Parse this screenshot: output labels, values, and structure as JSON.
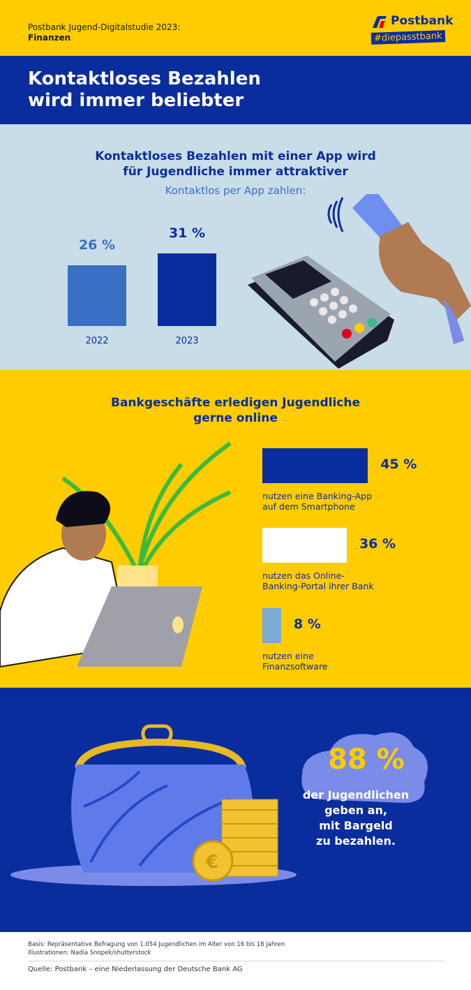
{
  "header": {
    "study_line1": "Postbank Jugend-Digitalstudie 2023:",
    "study_line2": "Finanzen",
    "logo_text": "Postbank",
    "logo_hashtag": "#diepasstbank"
  },
  "title": {
    "line1": "Kontaktloses Bezahlen",
    "line2": "wird immer beliebter"
  },
  "section1": {
    "heading_line1": "Kontaktloses Bezahlen mit einer App wird",
    "heading_line2": "für Jugendliche immer attraktiver",
    "subheading": "Kontaktlos per App zahlen:"
  },
  "section2": {
    "heading_line1": "Bankgeschäfte erledigen Jugendliche",
    "heading_line2": "gerne online"
  },
  "section3": {
    "value": "88 %",
    "text_line1": "der Jugendlichen",
    "text_line2": "geben an,",
    "text_line3": "mit Bargeld",
    "text_line4": "zu bezahlen."
  },
  "footer": {
    "basis": "Basis: Repräsentative Befragung von 1.054 Jugendlichen im Alter von 16 bis 18 Jahren",
    "illustrations": "Illustrationen: Nadia Snopek/shutterstock",
    "source": "Quelle: Postbank – eine Niederlassung der Deutsche Bank AG"
  },
  "colors": {
    "yellow": "#FFCC00",
    "blue": "#0A2D9E",
    "light_blue": "#C9DDE8",
    "bar_2022": "#3A70C4",
    "bar_2023": "#0A2D9E",
    "bar_white": "#FFFFFF",
    "bar_small": "#7AAAD6",
    "highlight": "#FFCC00"
  },
  "chart_data": [
    {
      "type": "bar",
      "title": "Kontaktlos per App zahlen:",
      "categories": [
        "2022",
        "2023"
      ],
      "values": [
        26,
        31
      ],
      "labels": [
        "26 %",
        "31 %"
      ],
      "unit": "%"
    },
    {
      "type": "bar",
      "orientation": "horizontal",
      "categories": [
        "nutzen eine Banking-App auf dem Smartphone",
        "nutzen das Online-Banking-Portal ihrer Bank",
        "nutzen eine Finanzsoftware"
      ],
      "label_lines": [
        [
          "nutzen eine Banking-App",
          "auf dem Smartphone"
        ],
        [
          "nutzen das Online-",
          "Banking-Portal ihrer Bank"
        ],
        [
          "nutzen eine",
          "Finanzsoftware"
        ]
      ],
      "values": [
        45,
        36,
        8
      ],
      "labels": [
        "45 %",
        "36 %",
        "8 %"
      ],
      "unit": "%"
    }
  ]
}
